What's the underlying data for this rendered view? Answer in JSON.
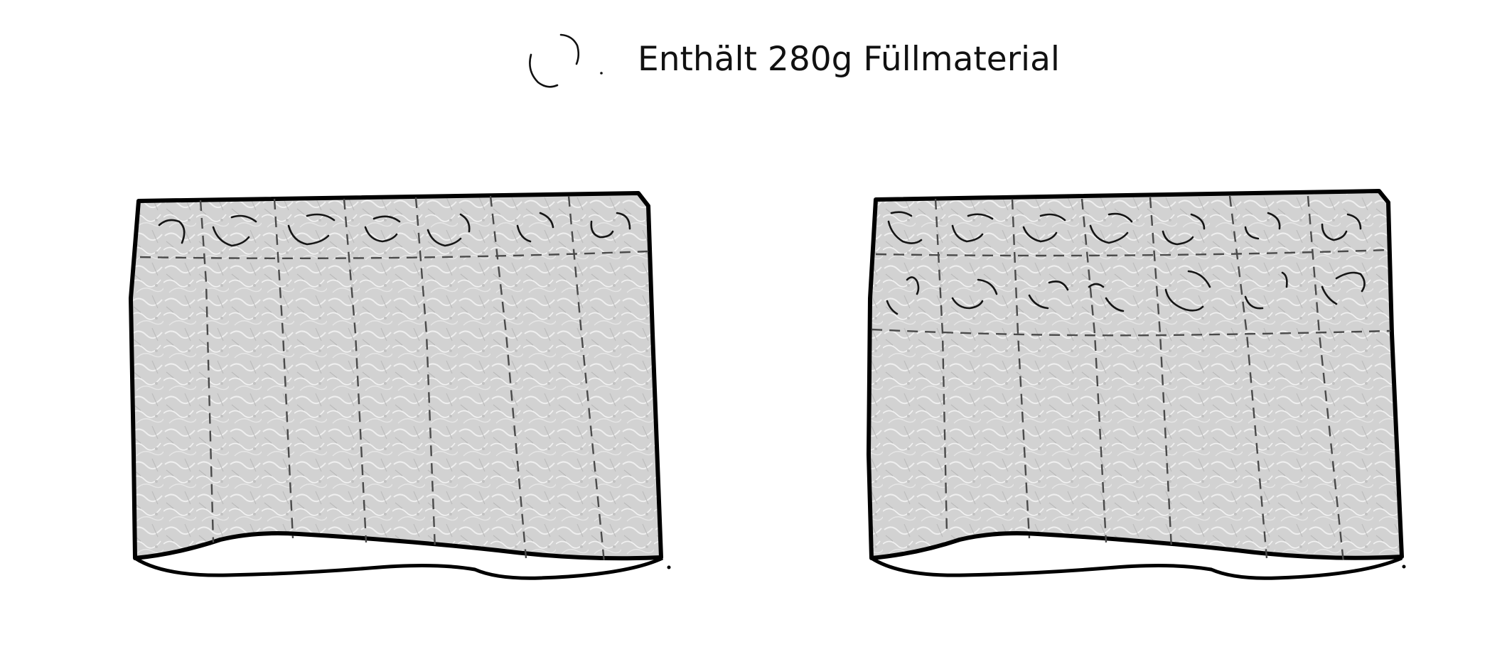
{
  "legend": {
    "label": "Enthält 280g Füllmaterial",
    "icon": "filling-clump-icon"
  },
  "panels": [
    {
      "name": "panel-left",
      "filled_rows": 1,
      "columns": 7
    },
    {
      "name": "panel-right",
      "filled_rows": 2,
      "columns": 7
    }
  ],
  "colors": {
    "outline": "#000000",
    "fabric_fill": "#d4d4d4",
    "stitch": "#4a4a4a"
  }
}
